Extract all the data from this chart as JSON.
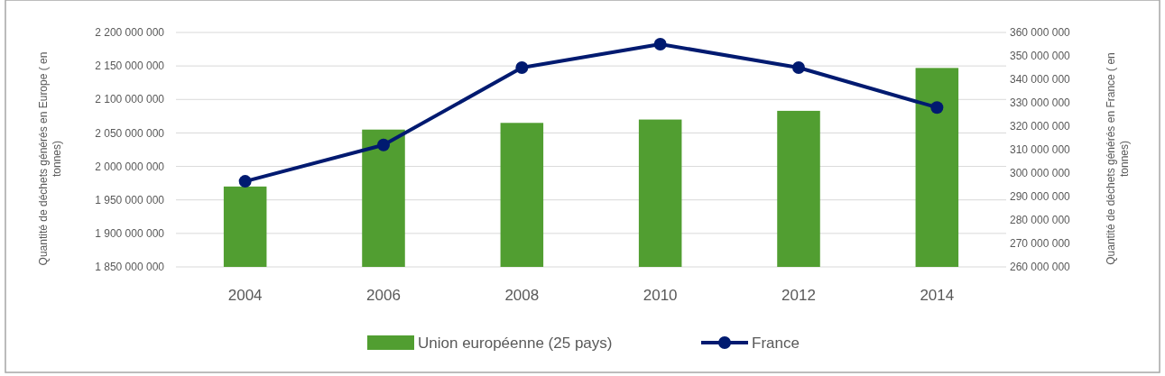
{
  "chart_data": {
    "type": "bar",
    "categories": [
      "2004",
      "2006",
      "2008",
      "2010",
      "2012",
      "2014"
    ],
    "series": [
      {
        "name": "Union européenne (25 pays)",
        "color": "#519e31",
        "values": [
          1970000000,
          2055000000,
          2065000000,
          2070000000,
          2083000000,
          2147000000
        ]
      },
      {
        "name": "France",
        "type": "line",
        "axis": "y2",
        "color": "#001a70",
        "marker": "circle",
        "values": [
          296500000,
          312000000,
          345000000,
          355000000,
          345000000,
          328000000
        ]
      }
    ],
    "ylabel": "Quantité de déchets générés en Europe ( en tonnes)",
    "y2label": "Quantité de déchets générés en France ( en tonnes)",
    "ylim": [
      1850000000,
      2200000000
    ],
    "yticks": [
      {
        "value": 1850000000,
        "label": "1 850 000 000"
      },
      {
        "value": 1900000000,
        "label": "1 900 000 000"
      },
      {
        "value": 1950000000,
        "label": "1 950 000 000"
      },
      {
        "value": 2000000000,
        "label": "2 000 000 000"
      },
      {
        "value": 2050000000,
        "label": "2 050 000 000"
      },
      {
        "value": 2100000000,
        "label": "2 100 000 000"
      },
      {
        "value": 2150000000,
        "label": "2 150 000 000"
      },
      {
        "value": 2200000000,
        "label": "2 200 000 000"
      }
    ],
    "y2lim": [
      260000000,
      360000000
    ],
    "y2ticks": [
      {
        "value": 260000000,
        "label": "260 000 000"
      },
      {
        "value": 270000000,
        "label": "270 000 000"
      },
      {
        "value": 280000000,
        "label": "280 000 000"
      },
      {
        "value": 290000000,
        "label": "290 000 000"
      },
      {
        "value": 300000000,
        "label": "300 000 000"
      },
      {
        "value": 310000000,
        "label": "310 000 000"
      },
      {
        "value": 320000000,
        "label": "320 000 000"
      },
      {
        "value": 330000000,
        "label": "330 000 000"
      },
      {
        "value": 340000000,
        "label": "340 000 000"
      },
      {
        "value": 350000000,
        "label": "350 000 000"
      },
      {
        "value": 360000000,
        "label": "360 000 000"
      }
    ],
    "grid": "y",
    "legend": "bottom"
  }
}
